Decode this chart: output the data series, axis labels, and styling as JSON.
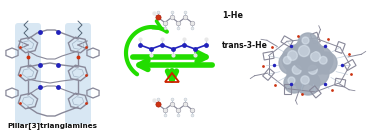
{
  "label_pillar": "Pillar[3]trianglamines",
  "label_1he": "1-He",
  "label_trans3he": "trans-3-He",
  "bg_color": "#ffffff",
  "arrow_green": "#22dd00",
  "arrow_green_dark": "#00bb00",
  "triangle_color": "#cc2200",
  "blue_color": "#2222bb",
  "blue_mid": "#3355cc",
  "light_blue_bg": "#cce0f0",
  "gray_mol": "#888899",
  "gray_light": "#aabbcc",
  "gray_dark": "#556677",
  "red_mol": "#cc3311",
  "white_mol": "#e8e8e8",
  "sphere_gray": "#a0aab8",
  "sphere_light": "#c8d4e0",
  "sphere_highlight": "#e0eaf4",
  "figsize": [
    3.78,
    1.33
  ],
  "dpi": 100
}
